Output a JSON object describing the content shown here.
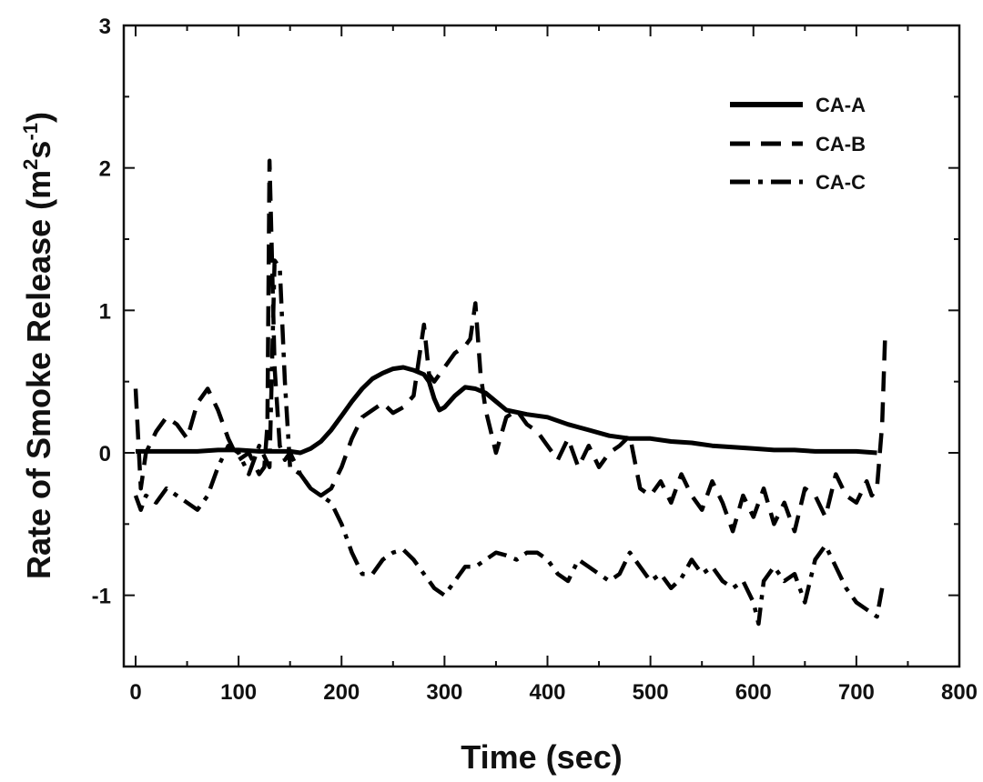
{
  "chart_data": {
    "type": "line",
    "title": "",
    "xlabel": "Time (sec)",
    "ylabel": "Rate of Smoke Release (m",
    "ylabel_sup1": "2",
    "ylabel_mid": "s",
    "ylabel_sup2": "-1",
    "ylabel_end": ")",
    "xlim": [
      0,
      800
    ],
    "ylim": [
      -1.5,
      3
    ],
    "x_ticks": [
      "0",
      "100",
      "200",
      "300",
      "400",
      "500",
      "600",
      "700",
      "800"
    ],
    "y_ticks": [
      "-1",
      "0",
      "1",
      "2",
      "3"
    ],
    "grid": false,
    "legend_position": "top-right",
    "series": [
      {
        "name": "CA-A",
        "style": "solid",
        "color": "#000000",
        "x": [
          0,
          20,
          40,
          60,
          80,
          100,
          120,
          140,
          150,
          160,
          170,
          180,
          190,
          200,
          210,
          220,
          230,
          240,
          250,
          260,
          270,
          280,
          285,
          290,
          295,
          300,
          310,
          320,
          330,
          340,
          350,
          360,
          380,
          400,
          420,
          440,
          460,
          480,
          500,
          520,
          540,
          560,
          580,
          600,
          620,
          640,
          660,
          680,
          700,
          720
        ],
        "y": [
          0.01,
          0.01,
          0.01,
          0.01,
          0.02,
          0.02,
          0.01,
          0.01,
          0.01,
          0.0,
          0.03,
          0.08,
          0.16,
          0.26,
          0.36,
          0.45,
          0.52,
          0.56,
          0.59,
          0.6,
          0.58,
          0.55,
          0.5,
          0.38,
          0.3,
          0.32,
          0.4,
          0.46,
          0.45,
          0.42,
          0.36,
          0.3,
          0.27,
          0.25,
          0.2,
          0.16,
          0.12,
          0.1,
          0.1,
          0.08,
          0.07,
          0.05,
          0.04,
          0.03,
          0.02,
          0.02,
          0.01,
          0.01,
          0.01,
          0.0
        ]
      },
      {
        "name": "CA-B",
        "style": "dash",
        "color": "#000000",
        "x": [
          0,
          5,
          10,
          20,
          30,
          40,
          50,
          60,
          70,
          80,
          90,
          100,
          110,
          120,
          125,
          128,
          130,
          132,
          135,
          140,
          145,
          150,
          160,
          170,
          180,
          190,
          200,
          210,
          220,
          230,
          240,
          250,
          260,
          270,
          280,
          285,
          290,
          300,
          310,
          320,
          325,
          330,
          335,
          340,
          345,
          350,
          360,
          370,
          380,
          390,
          400,
          410,
          420,
          430,
          440,
          450,
          460,
          470,
          480,
          490,
          500,
          510,
          520,
          530,
          540,
          550,
          560,
          570,
          580,
          590,
          600,
          610,
          620,
          630,
          640,
          650,
          660,
          670,
          680,
          690,
          700,
          710,
          715,
          720,
          725,
          728
        ],
        "y": [
          0.45,
          -0.25,
          0.0,
          0.15,
          0.25,
          0.2,
          0.1,
          0.35,
          0.45,
          0.3,
          0.1,
          -0.05,
          0.0,
          -0.15,
          -0.1,
          0.2,
          2.05,
          1.5,
          0.6,
          0.05,
          -0.05,
          0.0,
          -0.15,
          -0.25,
          -0.3,
          -0.25,
          -0.1,
          0.1,
          0.25,
          0.3,
          0.35,
          0.28,
          0.32,
          0.4,
          0.9,
          0.55,
          0.5,
          0.6,
          0.7,
          0.75,
          0.8,
          1.05,
          0.55,
          0.3,
          0.15,
          0.0,
          0.25,
          0.3,
          0.2,
          0.15,
          0.05,
          -0.05,
          0.1,
          -0.1,
          0.05,
          -0.1,
          0.0,
          0.05,
          0.12,
          -0.25,
          -0.3,
          -0.2,
          -0.35,
          -0.15,
          -0.3,
          -0.4,
          -0.2,
          -0.35,
          -0.55,
          -0.3,
          -0.45,
          -0.25,
          -0.5,
          -0.35,
          -0.55,
          -0.25,
          -0.3,
          -0.45,
          -0.15,
          -0.3,
          -0.35,
          -0.2,
          -0.3,
          -0.25,
          0.2,
          0.85
        ]
      },
      {
        "name": "CA-C",
        "style": "dashdot",
        "color": "#000000",
        "x": [
          0,
          5,
          10,
          20,
          30,
          40,
          50,
          60,
          70,
          80,
          90,
          100,
          110,
          120,
          130,
          135,
          140,
          145,
          150,
          160,
          170,
          180,
          190,
          200,
          210,
          220,
          230,
          240,
          250,
          260,
          270,
          280,
          290,
          300,
          310,
          320,
          330,
          340,
          350,
          360,
          370,
          380,
          390,
          400,
          410,
          420,
          430,
          440,
          450,
          460,
          470,
          480,
          490,
          500,
          510,
          520,
          530,
          540,
          550,
          560,
          570,
          580,
          590,
          600,
          605,
          610,
          620,
          630,
          640,
          650,
          660,
          670,
          680,
          690,
          700,
          710,
          720,
          725
        ],
        "y": [
          -0.3,
          -0.4,
          -0.3,
          -0.35,
          -0.25,
          -0.3,
          -0.35,
          -0.4,
          -0.3,
          -0.1,
          0.05,
          0.0,
          -0.15,
          0.05,
          -0.1,
          1.35,
          1.3,
          0.5,
          -0.1,
          -0.15,
          -0.25,
          -0.3,
          -0.35,
          -0.5,
          -0.7,
          -0.85,
          -0.85,
          -0.75,
          -0.7,
          -0.68,
          -0.75,
          -0.85,
          -0.95,
          -1.0,
          -0.9,
          -0.8,
          -0.8,
          -0.75,
          -0.7,
          -0.72,
          -0.75,
          -0.7,
          -0.7,
          -0.75,
          -0.85,
          -0.9,
          -0.75,
          -0.8,
          -0.85,
          -0.9,
          -0.85,
          -0.7,
          -0.8,
          -0.9,
          -0.85,
          -0.95,
          -0.88,
          -0.75,
          -0.85,
          -0.8,
          -0.9,
          -0.95,
          -0.9,
          -1.05,
          -1.2,
          -0.9,
          -0.8,
          -0.9,
          -0.85,
          -1.05,
          -0.75,
          -0.65,
          -0.8,
          -0.95,
          -1.05,
          -1.1,
          -1.15,
          -0.95
        ]
      }
    ]
  }
}
